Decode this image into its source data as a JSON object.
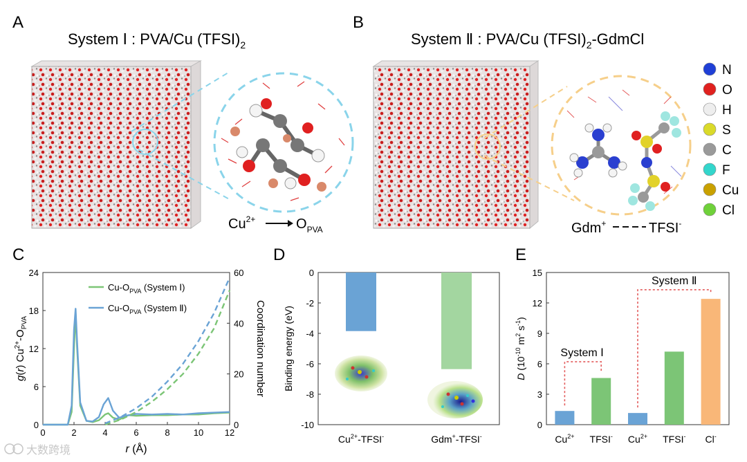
{
  "panels": {
    "A": {
      "letter": "A",
      "title_prefix": "System Ⅰ :  PVA/Cu (TFSI)",
      "title_sub": "2",
      "arrow_from": "Cu",
      "arrow_from_sup": "2+",
      "arrow_to": "O",
      "arrow_to_sub": "PVA"
    },
    "B": {
      "letter": "B",
      "title_prefix": "System Ⅱ :  PVA/Cu (TFSI)",
      "title_sub": "2",
      "title_suffix": "-GdmCl",
      "label_left": "Gdm",
      "label_left_sup": "+",
      "label_right": "TFSI",
      "label_right_sup": "-"
    },
    "C": {
      "letter": "C"
    },
    "D": {
      "letter": "D"
    },
    "E": {
      "letter": "E"
    }
  },
  "atom_legend": [
    {
      "symbol": "N",
      "color": "#1f3fd6"
    },
    {
      "symbol": "O",
      "color": "#e0211f"
    },
    {
      "symbol": "H",
      "color": "#eeeeee"
    },
    {
      "symbol": "S",
      "color": "#dada2a"
    },
    {
      "symbol": "C",
      "color": "#9a9a9a"
    },
    {
      "symbol": "F",
      "color": "#33d6cc"
    },
    {
      "symbol": "Cu",
      "color": "#c9a100"
    },
    {
      "symbol": "Cl",
      "color": "#6fd13a"
    }
  ],
  "watermark": "大数跨境",
  "chart_data": [
    {
      "id": "C",
      "type": "line",
      "xlabel": "r (Å)",
      "ylabel": "g(r) Cu2+-OPVA",
      "y2label": "Coordination number",
      "xlim": [
        0,
        12
      ],
      "ylim": [
        0,
        24
      ],
      "y2lim": [
        0,
        60
      ],
      "xticks": [
        "0",
        "2",
        "4",
        "6",
        "8",
        "10",
        "12"
      ],
      "yticks": [
        "0",
        "6",
        "12",
        "18",
        "24"
      ],
      "y2ticks": [
        "0",
        "20",
        "40",
        "60"
      ],
      "legend": [
        {
          "name": "Cu-O",
          "name_sub": "PVA",
          "name_suffix": " (System Ⅰ)",
          "color": "#7cc576"
        },
        {
          "name": "Cu-O",
          "name_sub": "PVA",
          "name_suffix": " (System Ⅱ)",
          "color": "#6aa3d5"
        }
      ],
      "series": [
        {
          "name": "System Ⅰ g(r)",
          "color": "#7cc576",
          "x": [
            0,
            1.6,
            1.85,
            2.0,
            2.1,
            2.2,
            2.4,
            2.8,
            3.2,
            3.6,
            4.0,
            4.2,
            4.5,
            4.9,
            5.5,
            6.0,
            7.0,
            8.0,
            9.0,
            10.0,
            11.0,
            12.0
          ],
          "y": [
            0,
            0,
            2,
            12,
            17.6,
            12,
            3,
            0.6,
            0.4,
            0.7,
            1.6,
            1.8,
            1.1,
            0.8,
            1.5,
            1.4,
            1.5,
            1.5,
            1.6,
            1.6,
            1.8,
            1.9
          ]
        },
        {
          "name": "System Ⅱ g(r)",
          "color": "#6aa3d5",
          "x": [
            0,
            1.6,
            1.85,
            2.0,
            2.1,
            2.2,
            2.4,
            2.8,
            3.2,
            3.6,
            3.9,
            4.2,
            4.5,
            4.9,
            5.5,
            6.0,
            7.0,
            8.0,
            9.0,
            10.0,
            11.0,
            12.0
          ],
          "y": [
            0,
            0,
            3,
            15,
            18.3,
            13,
            3.5,
            0.6,
            0.5,
            1.2,
            3.2,
            4.2,
            2.2,
            1.1,
            1.5,
            1.7,
            1.6,
            1.7,
            1.6,
            1.8,
            1.9,
            2.0
          ]
        },
        {
          "name": "System Ⅰ coordination number",
          "color": "#7cc576",
          "dashed": true,
          "axis": "y2",
          "x": [
            4,
            5,
            6,
            7,
            8,
            9,
            10,
            11,
            12
          ],
          "y": [
            0,
            2,
            5,
            9,
            14,
            20,
            28,
            38,
            53
          ]
        },
        {
          "name": "System Ⅱ coordination number",
          "color": "#6aa3d5",
          "dashed": true,
          "axis": "y2",
          "x": [
            4,
            5,
            6,
            7,
            8,
            9,
            10,
            11,
            12
          ],
          "y": [
            0.5,
            3,
            6.5,
            11,
            17,
            24,
            33,
            44,
            58
          ]
        }
      ]
    },
    {
      "id": "D",
      "type": "bar",
      "ylabel": "Binding energy (eV)",
      "ylim": [
        -10,
        0
      ],
      "yticks": [
        "0",
        "-2",
        "-4",
        "-6",
        "-8",
        "-10"
      ],
      "categories": [
        {
          "base": "Cu",
          "sup": "2+",
          "rest": "-TFSI",
          "sup2": "-"
        },
        {
          "base": "Gdm",
          "sup": "+",
          "rest": "-TFSI",
          "sup2": "-"
        }
      ],
      "values": [
        -3.85,
        -6.35
      ],
      "colors": [
        "#6aa3d5",
        "#a3d6a0"
      ]
    },
    {
      "id": "E",
      "type": "bar",
      "ylabel": "D (10-10 m2 s-1)",
      "ylim": [
        0,
        15
      ],
      "yticks": [
        "0",
        "3",
        "6",
        "9",
        "12",
        "15"
      ],
      "categories": [
        {
          "base": "Cu",
          "sup": "2+"
        },
        {
          "base": "TFSI",
          "sup": "-"
        },
        {
          "base": "Cu",
          "sup": "2+"
        },
        {
          "base": "TFSI",
          "sup": "-"
        },
        {
          "base": "Cl",
          "sup": "-"
        }
      ],
      "values": [
        1.35,
        4.6,
        1.15,
        7.2,
        12.4
      ],
      "colors": [
        "#6aa3d5",
        "#7cc576",
        "#6aa3d5",
        "#7cc576",
        "#f9b778"
      ],
      "brackets": [
        {
          "label": "System Ⅰ",
          "from": 0,
          "to": 1
        },
        {
          "label": "System Ⅱ",
          "from": 2,
          "to": 4
        }
      ]
    }
  ]
}
